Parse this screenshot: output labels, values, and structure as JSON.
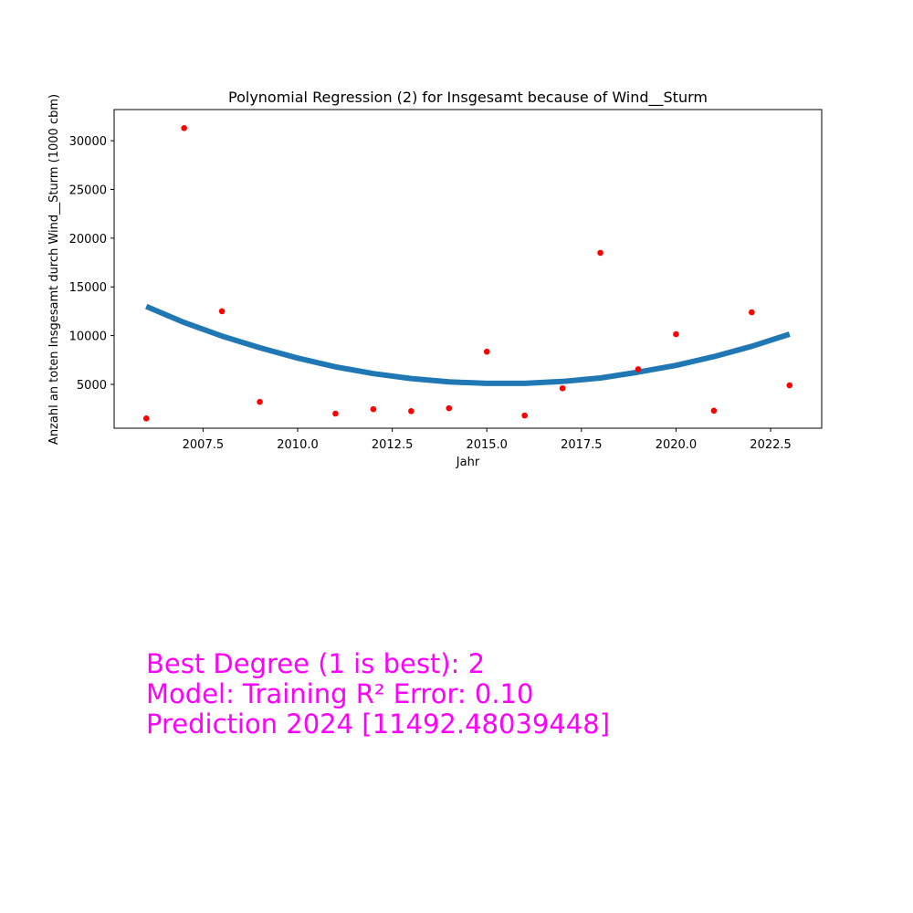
{
  "chart_data": {
    "type": "scatter",
    "title": "Polynomial Regression (2) for Insgesamt because of Wind__Sturm",
    "xlabel": "Jahr",
    "ylabel": "Anzahl an toten Insgesamt durch Wind__Sturm (1000 cbm)",
    "xlim": [
      2005.15,
      2023.85
    ],
    "ylim": [
      500,
      33200
    ],
    "xticks": [
      2007.5,
      2010.0,
      2012.5,
      2015.0,
      2017.5,
      2020.0,
      2022.5
    ],
    "xtick_labels": [
      "2007.5",
      "2010.0",
      "2012.5",
      "2015.0",
      "2017.5",
      "2020.0",
      "2022.5"
    ],
    "yticks": [
      5000,
      10000,
      15000,
      20000,
      25000,
      30000
    ],
    "ytick_labels": [
      "5000",
      "10000",
      "15000",
      "20000",
      "25000",
      "30000"
    ],
    "grid": false,
    "points": {
      "color": "#ff0000",
      "x": [
        2006,
        2007,
        2008,
        2009,
        2011,
        2012,
        2013,
        2014,
        2015,
        2016,
        2017,
        2018,
        2019,
        2020,
        2021,
        2022,
        2023
      ],
      "y": [
        1500,
        31300,
        12500,
        3200,
        2000,
        2450,
        2250,
        2550,
        8350,
        1800,
        4600,
        18500,
        6550,
        10150,
        2300,
        12400,
        4900
      ]
    },
    "fit_curve": {
      "color": "#1f77b4",
      "x": [
        2006,
        2007,
        2008,
        2009,
        2010,
        2011,
        2012,
        2013,
        2014,
        2015,
        2016,
        2017,
        2018,
        2019,
        2020,
        2021,
        2022,
        2023
      ],
      "y": [
        13000,
        11350,
        9950,
        8750,
        7700,
        6800,
        6100,
        5600,
        5250,
        5100,
        5100,
        5300,
        5650,
        6250,
        6950,
        7850,
        8900,
        10150
      ]
    }
  },
  "annotations": [
    "Best Degree (1 is best): 2",
    "Model: Training R² Error: 0.10",
    "Prediction 2024 [11492.48039448]"
  ]
}
